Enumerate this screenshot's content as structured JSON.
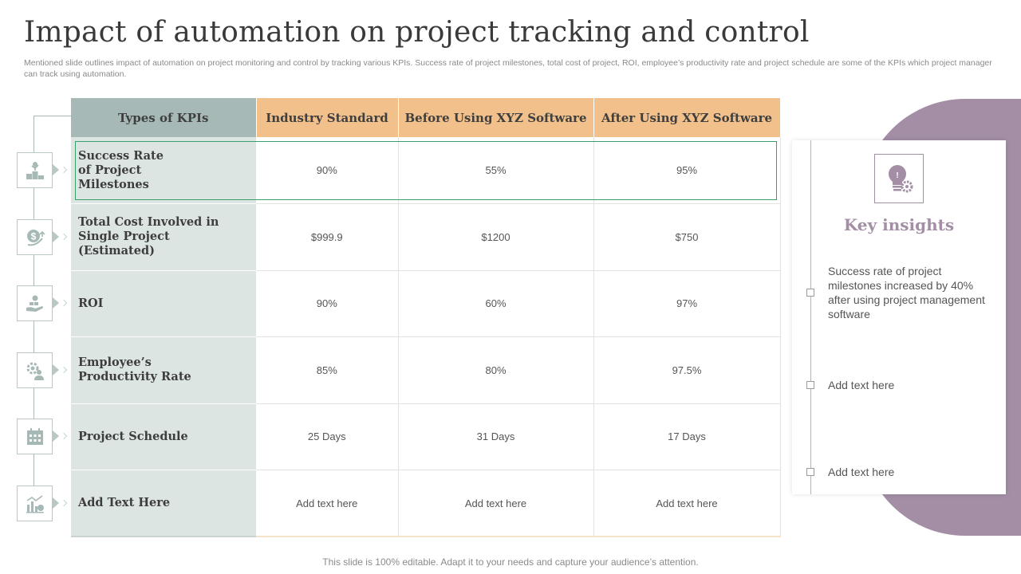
{
  "title": "Impact of automation on project tracking and control",
  "subtitle": "Mentioned slide outlines impact of automation on project monitoring and control by tracking various KPIs. Success rate of project milestones, total cost of project, ROI,  employee’s productivity rate and project schedule are some of the KPIs which project manager can track using automation.",
  "table": {
    "headers": [
      "Types of KPIs",
      "Industry Standard",
      "Before Using XYZ Software",
      "After Using XYZ Software"
    ],
    "rows": [
      {
        "kpi": "Success Rate of Project Milestones",
        "icon": "trophy-podium-icon",
        "industry": "90%",
        "before": "55%",
        "after": "95%"
      },
      {
        "kpi": "Total Cost Involved in Single Project (Estimated)",
        "icon": "dollar-coin-icon",
        "industry": "$999.9",
        "before": "$1200",
        "after": "$750"
      },
      {
        "kpi": "ROI",
        "icon": "money-hand-icon",
        "industry": "90%",
        "before": "60%",
        "after": "97%"
      },
      {
        "kpi": "Employee’s Productivity Rate",
        "icon": "gear-person-icon",
        "industry": "85%",
        "before": "80%",
        "after": "97.5%"
      },
      {
        "kpi": "Project Schedule",
        "icon": "calendar-icon",
        "industry": "25 Days",
        "before": "31 Days",
        "after": "17 Days"
      },
      {
        "kpi": "Add Text Here",
        "icon": "bar-chart-icon",
        "industry": "Add text here",
        "before": "Add text here",
        "after": "Add text here"
      }
    ]
  },
  "insights": {
    "title": "Key insights",
    "icon": "lightbulb-gear-icon",
    "items": [
      "Success rate of project milestones increased by 40% after using project management software",
      "Add text here",
      "Add text here"
    ]
  },
  "footer": "This slide is 100% editable. Adapt it to your needs and capture your audience’s attention.",
  "colors": {
    "kpi_header": "#a7b9b6",
    "other_header": "#f2c08b",
    "kpi_column": "#dde5e3",
    "accent_purple": "#a38ea5",
    "highlight_border": "#3aa06a"
  }
}
